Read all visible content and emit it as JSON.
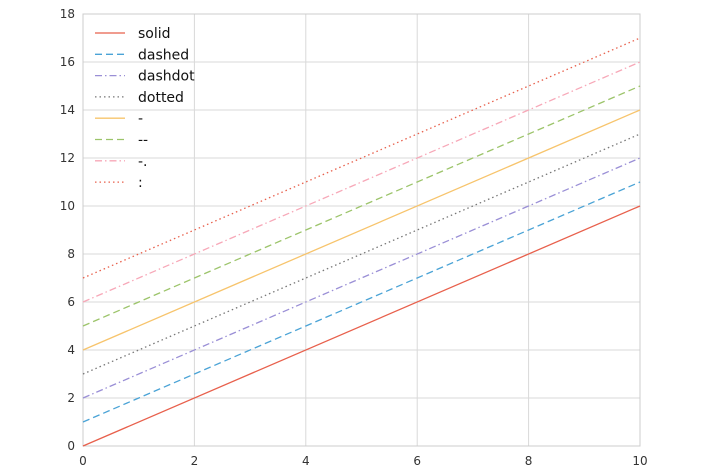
{
  "chart_data": {
    "type": "line",
    "title": "",
    "xlabel": "",
    "ylabel": "",
    "xlim": [
      0,
      10
    ],
    "ylim": [
      0,
      18
    ],
    "x_ticks": [
      0,
      2,
      4,
      6,
      8,
      10
    ],
    "y_ticks": [
      0,
      2,
      4,
      6,
      8,
      10,
      12,
      14,
      16,
      18
    ],
    "grid": true,
    "legend_position": "top-left",
    "x": [
      0,
      10
    ],
    "series": [
      {
        "name": "solid",
        "values": [
          0,
          10
        ],
        "color": "#e8604c",
        "linestyle": "solid"
      },
      {
        "name": "dashed",
        "values": [
          1,
          11
        ],
        "color": "#4aa3d6",
        "linestyle": "dashed"
      },
      {
        "name": "dashdot",
        "values": [
          2,
          12
        ],
        "color": "#9a8fd6",
        "linestyle": "dashdot"
      },
      {
        "name": "dotted",
        "values": [
          3,
          13
        ],
        "color": "#777777",
        "linestyle": "dotted"
      },
      {
        "name": "-",
        "values": [
          4,
          14
        ],
        "color": "#f7c46c",
        "linestyle": "solid"
      },
      {
        "name": "--",
        "values": [
          5,
          15
        ],
        "color": "#9cc46a",
        "linestyle": "dashed"
      },
      {
        "name": "-.",
        "values": [
          6,
          16
        ],
        "color": "#f7a8b8",
        "linestyle": "dashdot"
      },
      {
        "name": ":",
        "values": [
          7,
          17
        ],
        "color": "#e8604c",
        "linestyle": "dotted"
      }
    ]
  }
}
